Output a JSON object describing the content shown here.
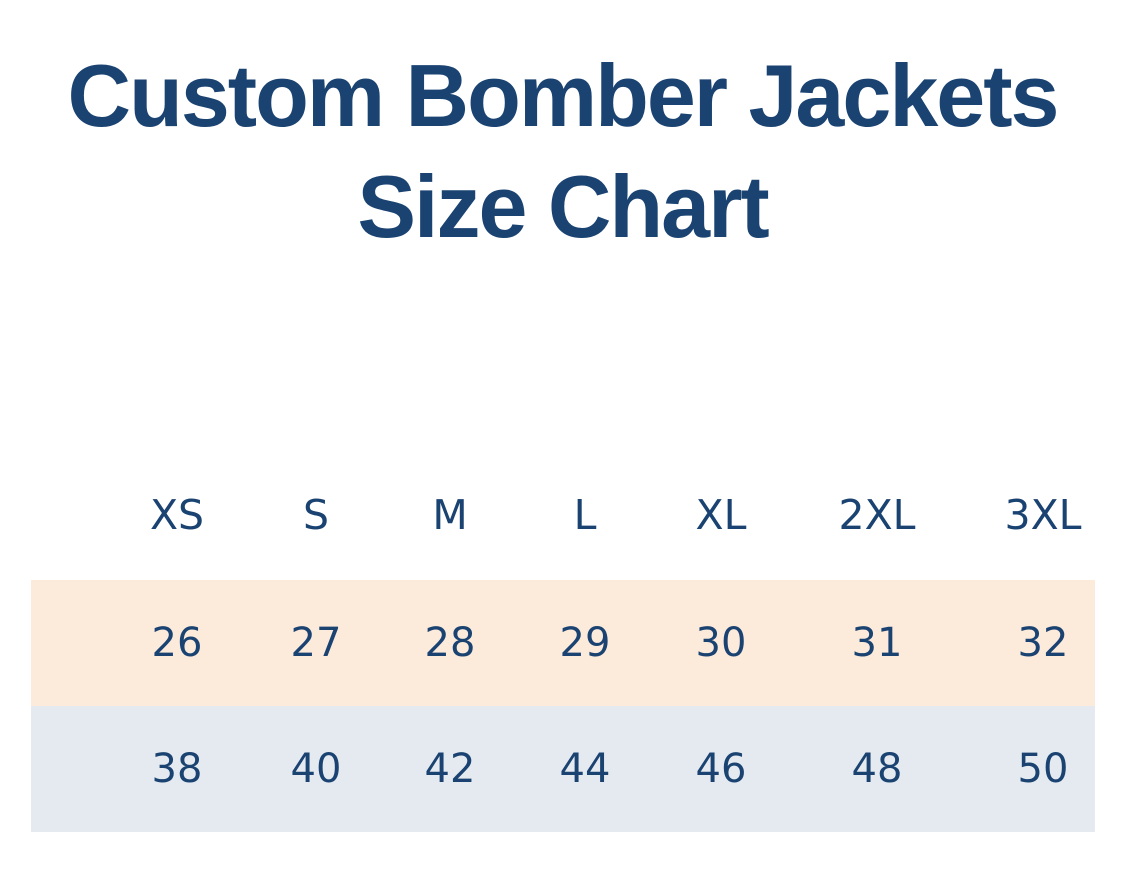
{
  "title": {
    "line1": "Custom Bomber Jackets",
    "line2": "Size Chart"
  },
  "chart_data": {
    "type": "table",
    "title": "Custom Bomber Jackets Size Chart",
    "columns": [
      "XS",
      "S",
      "M",
      "L",
      "XL",
      "2XL",
      "3XL"
    ],
    "rows": [
      {
        "values": [
          "26",
          "27",
          "28",
          "29",
          "30",
          "31",
          "32"
        ]
      },
      {
        "values": [
          "38",
          "40",
          "42",
          "44",
          "46",
          "48",
          "50"
        ]
      }
    ],
    "layout": {
      "grid": false,
      "legend": false,
      "header_background": "none"
    }
  },
  "colors": {
    "text_navy": "#1a4372",
    "row1_background": "#fceadb",
    "row2_background": "#e5eaf0",
    "page_background": "#ffffff"
  }
}
